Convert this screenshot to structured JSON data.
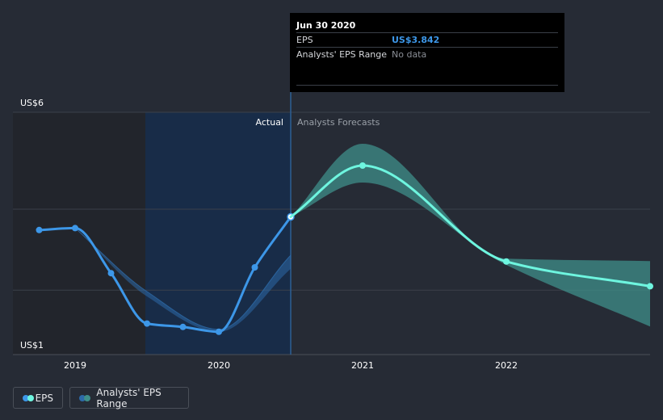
{
  "tooltip": {
    "date": "Jun 30 2020",
    "rows": [
      {
        "label": "EPS",
        "value": "US$3.842"
      },
      {
        "label": "Analysts' EPS Range",
        "value": "No data"
      }
    ]
  },
  "section_labels": {
    "actual": "Actual",
    "forecast": "Analysts Forecasts"
  },
  "legend": [
    {
      "label": "EPS",
      "colors": [
        "#3d97e8",
        "#6ef5df"
      ]
    },
    {
      "label": "Analysts' EPS Range",
      "colors": [
        "#2d6aa8",
        "#3f8f8a"
      ]
    }
  ],
  "chart_data": {
    "type": "line",
    "ylim": [
      1,
      6
    ],
    "y_tick_labels": [
      "US$6",
      "US$1"
    ],
    "x_tick_labels": [
      {
        "label": "2019",
        "x": 2019.0
      },
      {
        "label": "2020",
        "x": 2020.0
      },
      {
        "label": "2021",
        "x": 2021.0
      },
      {
        "label": "2022",
        "x": 2022.0
      }
    ],
    "xlim": [
      2018.57,
      2023.0
    ],
    "actual_end": 2020.5,
    "colors": {
      "actual": "#3d97e8",
      "forecast": "#6ef5df",
      "range_actual": "#2d6aa8",
      "range_forecast": "#3f8f8a"
    },
    "series": [
      {
        "name": "EPS",
        "points": [
          {
            "x": 2018.75,
            "y": 3.57
          },
          {
            "x": 2019.0,
            "y": 3.61
          },
          {
            "x": 2019.25,
            "y": 2.68
          },
          {
            "x": 2019.5,
            "y": 1.64
          },
          {
            "x": 2019.75,
            "y": 1.57
          },
          {
            "x": 2020.0,
            "y": 1.47
          },
          {
            "x": 2020.25,
            "y": 2.8
          },
          {
            "x": 2020.5,
            "y": 3.842
          }
        ]
      },
      {
        "name": "EPS forecast",
        "points": [
          {
            "x": 2020.5,
            "y": 3.842
          },
          {
            "x": 2021.0,
            "y": 4.9
          },
          {
            "x": 2022.0,
            "y": 2.92
          },
          {
            "x": 2023.0,
            "y": 2.41
          }
        ]
      }
    ],
    "range_forecast": {
      "x": [
        2020.5,
        2021.0,
        2022.0,
        2023.0
      ],
      "low": [
        3.842,
        4.55,
        2.85,
        1.58
      ],
      "high": [
        3.842,
        5.35,
        2.98,
        2.93
      ]
    },
    "range_actual": {
      "x": [
        2019.0,
        2019.5,
        2020.0,
        2020.5
      ],
      "low": [
        3.61,
        2.2,
        1.47,
        2.77
      ],
      "high": [
        3.61,
        2.3,
        1.52,
        3.05
      ]
    }
  }
}
